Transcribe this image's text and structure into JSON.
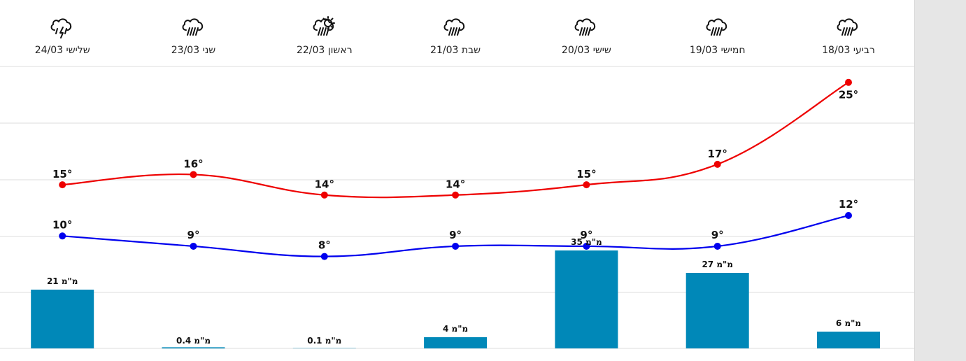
{
  "days": [
    {
      "label": "רביעי 18/03",
      "icon": "rain-cloud-icon",
      "high": 25,
      "low": 12,
      "precip": 6
    },
    {
      "label": "חמישי 19/03",
      "icon": "rain-cloud-icon",
      "high": 17,
      "low": 9,
      "precip": 27
    },
    {
      "label": "שישי 20/03",
      "icon": "rain-cloud-icon",
      "high": 15,
      "low": 9,
      "precip": 35
    },
    {
      "label": "שבת 21/03",
      "icon": "rain-cloud-icon",
      "high": 14,
      "low": 9,
      "precip": 4
    },
    {
      "label": "ראשון 22/03",
      "icon": "sun-cloud-rain-icon",
      "high": 14,
      "low": 8,
      "precip": 0.1
    },
    {
      "label": "שני 23/03",
      "icon": "rain-cloud-icon",
      "high": 16,
      "low": 9,
      "precip": 0.4
    },
    {
      "label": "שלישי 24/03",
      "icon": "thunder-rain-cloud-icon",
      "high": 15,
      "low": 10,
      "precip": 21
    }
  ],
  "units": {
    "temp": "°",
    "precip": "מ\"מ"
  },
  "colors": {
    "high": "#ee0000",
    "low": "#0000ee",
    "bar": "#0088b8",
    "grid": "#dddddd"
  },
  "chart_data": {
    "type": "line",
    "categories": [
      "רביעי 18/03",
      "חמישי 19/03",
      "שישי 20/03",
      "שבת 21/03",
      "ראשון 22/03",
      "שני 23/03",
      "שלישי 24/03"
    ],
    "series": [
      {
        "values": [
          25,
          17,
          15,
          14,
          14,
          16,
          15
        ]
      },
      {
        "values": [
          12,
          9,
          9,
          9,
          8,
          9,
          10
        ]
      }
    ],
    "bars": {
      "values": [
        6,
        27,
        35,
        4,
        0.1,
        0.4,
        21
      ],
      "unit": "מ\"מ"
    },
    "x_direction": "right-to-left",
    "grid": true,
    "legend": "none"
  }
}
